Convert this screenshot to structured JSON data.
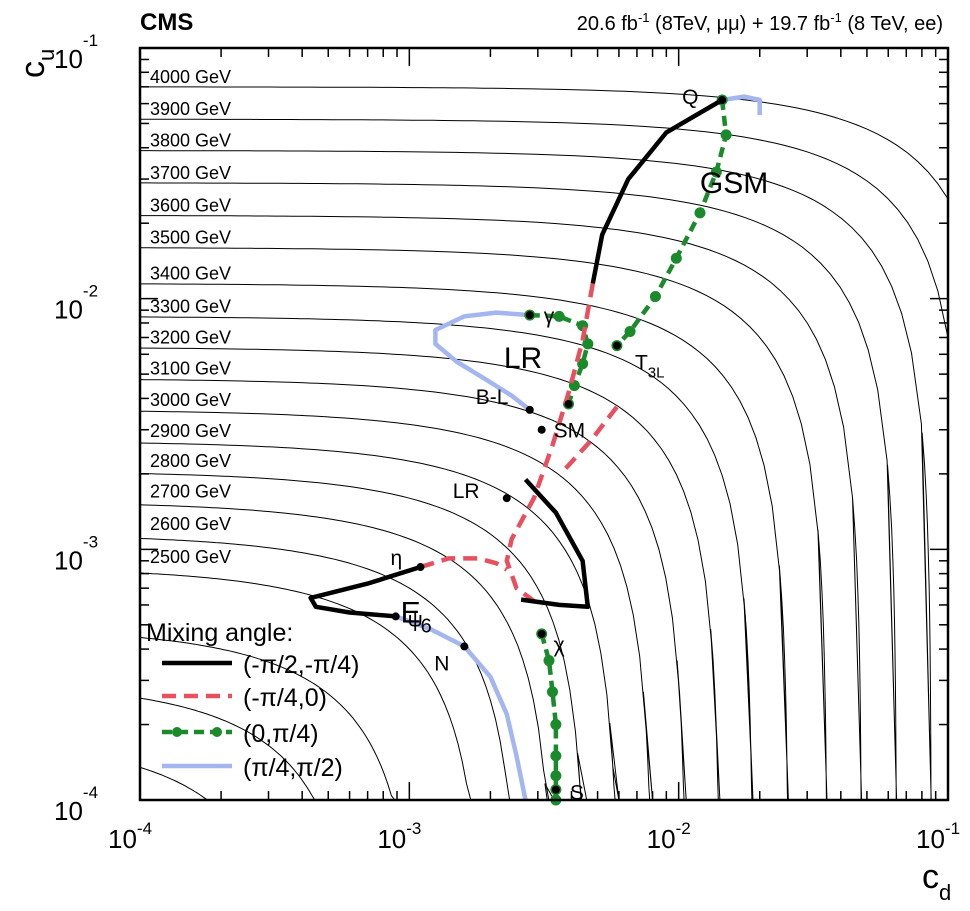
{
  "header": {
    "experiment": "CMS",
    "lumi_mumu": "20.6 fb",
    "lumi_mumu_sup": "-1",
    "lumi_mumu_rest": " (8TeV, μμ) + 19.7 fb",
    "lumi_ee_sup": "-1",
    "lumi_ee_rest": " (8 TeV, ee)"
  },
  "axes": {
    "x_label": "c",
    "x_label_sub": "d",
    "y_label": "c",
    "y_label_sub": "u",
    "x_ticks": [
      {
        "exp": -4,
        "base": "10",
        "sup": "-4"
      },
      {
        "exp": -3,
        "base": "10",
        "sup": "-3"
      },
      {
        "exp": -2,
        "base": "10",
        "sup": "-2"
      },
      {
        "exp": -1,
        "base": "10",
        "sup": "-1"
      }
    ],
    "y_ticks": [
      {
        "exp": -4,
        "base": "10",
        "sup": "-4"
      },
      {
        "exp": -3,
        "base": "10",
        "sup": "-3"
      },
      {
        "exp": -2,
        "base": "10",
        "sup": "-2"
      },
      {
        "exp": -1,
        "base": "10",
        "sup": "-1"
      }
    ]
  },
  "legend": {
    "title": "Mixing angle:",
    "entries": [
      {
        "label": "(-π/2,-π/4)",
        "style": "solid-black"
      },
      {
        "label": "(-π/4,0)",
        "style": "dashed-red"
      },
      {
        "label": "(0,π/4)",
        "style": "dashed-green-dots"
      },
      {
        "label": "(π/4,π/2)",
        "style": "solid-blue"
      }
    ]
  },
  "colors": {
    "black": "#000000",
    "red": "#e8505f",
    "green": "#1a8a2a",
    "blue": "#a3b6ef"
  },
  "chart_data": {
    "type": "line",
    "x_scale": "log",
    "y_scale": "log",
    "xlim": [
      0.0001,
      0.1
    ],
    "ylim": [
      0.0001,
      0.1
    ],
    "grid": false,
    "legend_position": "bottom-left",
    "mass_contours": {
      "labels": [
        "2500 GeV",
        "2600 GeV",
        "2700 GeV",
        "2800 GeV",
        "2900 GeV",
        "3000 GeV",
        "3100 GeV",
        "3200 GeV",
        "3300 GeV",
        "3400 GeV",
        "3500 GeV",
        "3600 GeV",
        "3700 GeV",
        "3800 GeV",
        "3900 GeV",
        "4000 GeV"
      ],
      "cu_at_left": [
        0.00085,
        0.00115,
        0.00155,
        0.00205,
        0.0027,
        0.0036,
        0.0048,
        0.0064,
        0.0085,
        0.0115,
        0.016,
        0.0215,
        0.029,
        0.039,
        0.052,
        0.07
      ],
      "extra_unlabeled_cu_at_left": [
        0.00011,
        0.00018,
        0.0003,
        0.00049
      ]
    },
    "series": [
      {
        "style": "solid-black",
        "segments": [
          [
            [
              0.0048,
              0.0115
            ],
            [
              0.0052,
              0.018
            ],
            [
              0.0065,
              0.03
            ],
            [
              0.009,
              0.046
            ],
            [
              0.0145,
              0.062
            ]
          ],
          [
            [
              0.0027,
              0.0019
            ],
            [
              0.0035,
              0.0014
            ],
            [
              0.0044,
              0.0009
            ],
            [
              0.0046,
              0.00059
            ],
            [
              0.0036,
              0.0006
            ],
            [
              0.0026,
              0.00063
            ]
          ],
          [
            [
              0.0011,
              0.00085
            ],
            [
              0.0007,
              0.00073
            ],
            [
              0.00043,
              0.00064
            ],
            [
              0.00045,
              0.00059
            ],
            [
              0.0006,
              0.00056
            ],
            [
              0.00089,
              0.00054
            ]
          ]
        ]
      },
      {
        "style": "dashed-red",
        "segments": [
          [
            [
              0.0048,
              0.0115
            ],
            [
              0.0044,
              0.0068
            ],
            [
              0.0039,
              0.0042
            ],
            [
              0.0034,
              0.0026
            ],
            [
              0.0029,
              0.0016
            ],
            [
              0.0024,
              0.0011
            ],
            [
              0.0023,
              0.0009
            ],
            [
              0.0025,
              0.0007
            ],
            [
              0.0031,
              0.00059
            ]
          ],
          [
            [
              0.0011,
              0.00085
            ],
            [
              0.0014,
              0.00092
            ],
            [
              0.0018,
              0.00092
            ],
            [
              0.0021,
              0.00088
            ],
            [
              0.0023,
              0.00083
            ]
          ],
          [
            [
              0.0059,
              0.0037
            ],
            [
              0.0047,
              0.0027
            ],
            [
              0.0038,
              0.0021
            ]
          ]
        ]
      },
      {
        "style": "dashed-green-dots",
        "segments": [
          [
            [
              0.0145,
              0.062
            ],
            [
              0.015,
              0.045
            ],
            [
              0.0138,
              0.032
            ],
            [
              0.012,
              0.022
            ],
            [
              0.0098,
              0.0145
            ],
            [
              0.0082,
              0.0102
            ],
            [
              0.0066,
              0.0074
            ],
            [
              0.0059,
              0.0065
            ]
          ],
          [
            [
              0.0028,
              0.0086
            ],
            [
              0.0036,
              0.0085
            ],
            [
              0.0044,
              0.0078
            ],
            [
              0.0046,
              0.0066
            ],
            [
              0.0044,
              0.0055
            ],
            [
              0.0041,
              0.0045
            ],
            [
              0.0039,
              0.0038
            ]
          ],
          [
            [
              0.0031,
              0.00046
            ],
            [
              0.0033,
              0.00036
            ],
            [
              0.0034,
              0.00027
            ],
            [
              0.0035,
              0.0002
            ],
            [
              0.0035,
              0.00015
            ],
            [
              0.0035,
              0.000125
            ],
            [
              0.0035,
              0.00011
            ],
            [
              0.0035,
              0.0001
            ]
          ]
        ]
      },
      {
        "style": "solid-blue",
        "segments": [
          [
            [
              0.0145,
              0.062
            ],
            [
              0.0175,
              0.064
            ],
            [
              0.02,
              0.062
            ],
            [
              0.02,
              0.054
            ]
          ],
          [
            [
              0.0028,
              0.0086
            ],
            [
              0.0021,
              0.0088
            ],
            [
              0.0016,
              0.0085
            ],
            [
              0.00125,
              0.0075
            ],
            [
              0.00125,
              0.0066
            ],
            [
              0.0015,
              0.0056
            ],
            [
              0.0019,
              0.0048
            ],
            [
              0.0024,
              0.0041
            ],
            [
              0.0028,
              0.0036
            ]
          ],
          [
            [
              0.00089,
              0.00054
            ],
            [
              0.0012,
              0.00048
            ],
            [
              0.0016,
              0.00041
            ],
            [
              0.002,
              0.00031
            ],
            [
              0.0023,
              0.00022
            ],
            [
              0.0025,
              0.00015
            ],
            [
              0.0027,
              0.0001
            ]
          ]
        ]
      }
    ],
    "benchmark_points": [
      {
        "label": "Q",
        "x": 0.0145,
        "y": 0.062
      },
      {
        "label": "γ",
        "x": 0.0028,
        "y": 0.0086
      },
      {
        "label": "T",
        "sub": "3L",
        "x": 0.0059,
        "y": 0.0065
      },
      {
        "label": "",
        "x": 0.0039,
        "y": 0.0038
      },
      {
        "label": "B-L",
        "x": 0.0028,
        "y": 0.0036
      },
      {
        "label": "SM",
        "x": 0.0031,
        "y": 0.003
      },
      {
        "label": "LR",
        "x": 0.0023,
        "y": 0.0016
      },
      {
        "label": "η",
        "x": 0.0011,
        "y": 0.00085
      },
      {
        "label": "ψ",
        "x": 0.00089,
        "y": 0.00054
      },
      {
        "label": "χ",
        "x": 0.0031,
        "y": 0.00046
      },
      {
        "label": "N",
        "x": 0.0016,
        "y": 0.00041
      },
      {
        "label": "S",
        "x": 0.0035,
        "y": 0.00011
      }
    ],
    "curve_labels": [
      {
        "text": "GSM",
        "x": 0.0155,
        "y": 0.029
      },
      {
        "text": "LR",
        "x": 0.0029,
        "y": 0.0058
      },
      {
        "text": "E",
        "sub": "6",
        "x": 0.0012,
        "y": 0.00056
      }
    ]
  }
}
